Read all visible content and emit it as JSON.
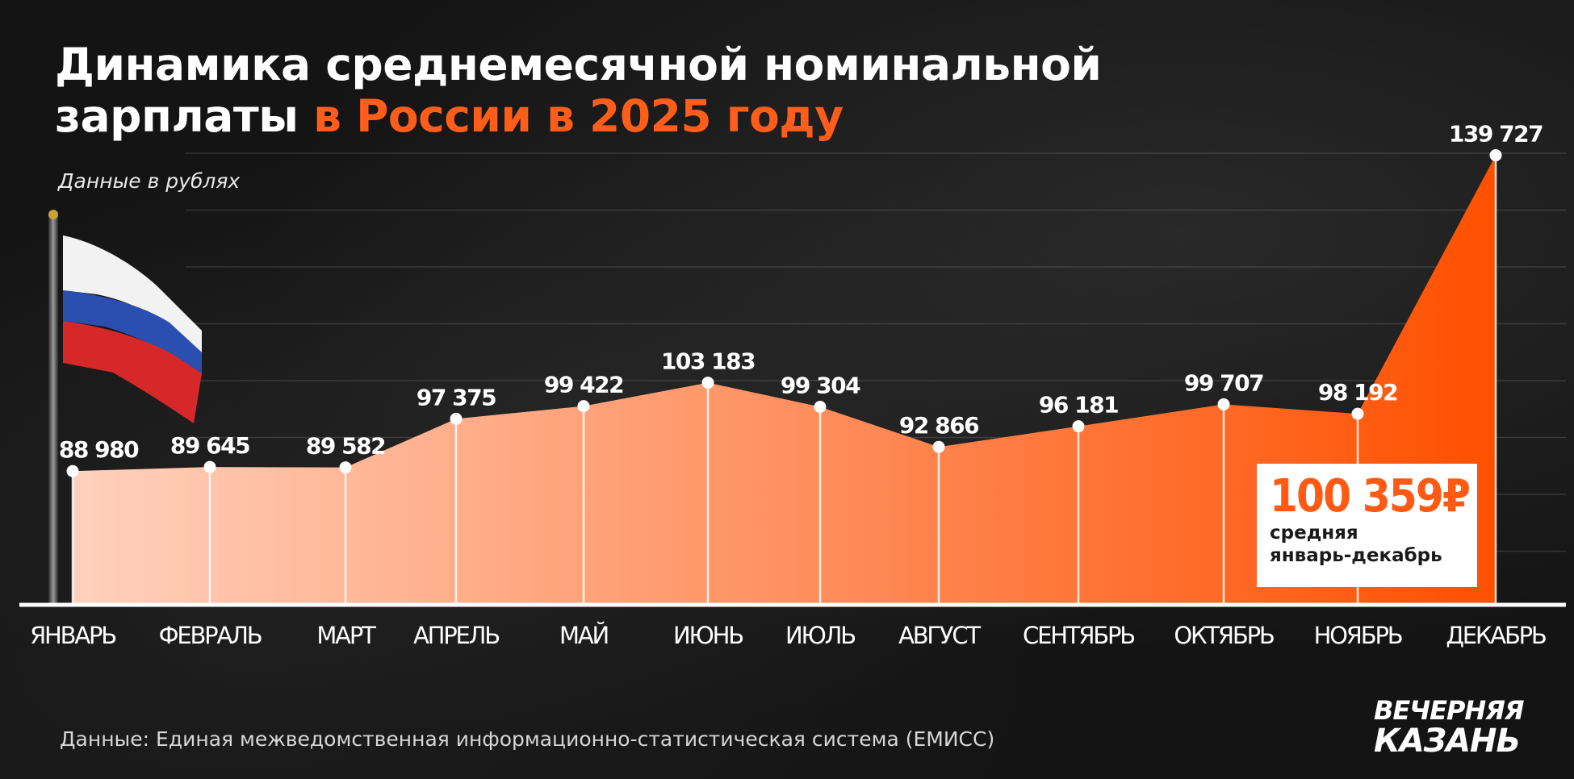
{
  "title": {
    "line1": "Динамика среднемесячной номинальной",
    "line2_white": "зарплаты",
    "line2_accent": "в России в 2025 году"
  },
  "subtitle": "Данные в рублях",
  "average": {
    "value": "100 359₽",
    "label_line1": "средняя",
    "label_line2": "январь-декабрь"
  },
  "source": "Данные: Единая межведомственная информационно-статистическая система (ЕМИСС)",
  "logo": {
    "line1": "ВЕЧЕРНЯЯ",
    "line2": "КАЗАНЬ"
  },
  "colors": {
    "accent": "#ff5e1a",
    "area_start": "#ffd1bd",
    "area_end": "#ff5000",
    "flag_white": "#f2f2f2",
    "flag_blue": "#2a4fb0",
    "flag_red": "#d62828"
  },
  "chart_data": {
    "type": "area",
    "title": "Динамика среднемесячной номинальной зарплаты в России в 2025 году",
    "subtitle": "Данные в рублях",
    "categories": [
      "ЯНВАРЬ",
      "ФЕВРАЛЬ",
      "МАРТ",
      "АПРЕЛЬ",
      "МАЙ",
      "ИЮНЬ",
      "ИЮЛЬ",
      "АВГУСТ",
      "СЕНТЯБРЬ",
      "ОКТЯБРЬ",
      "НОЯБРЬ",
      "ДЕКАБРЬ"
    ],
    "values": [
      88980,
      89645,
      89582,
      97375,
      99422,
      103183,
      99304,
      92866,
      96181,
      99707,
      98192,
      139727
    ],
    "labels": [
      "88 980",
      "89 645",
      "89 582",
      "97 375",
      "99 422",
      "103 183",
      "99 304",
      "92 866",
      "96 181",
      "99 707",
      "98 192",
      "139 727"
    ],
    "ylim": [
      67500,
      142000
    ],
    "grid": true,
    "legend": "none"
  }
}
